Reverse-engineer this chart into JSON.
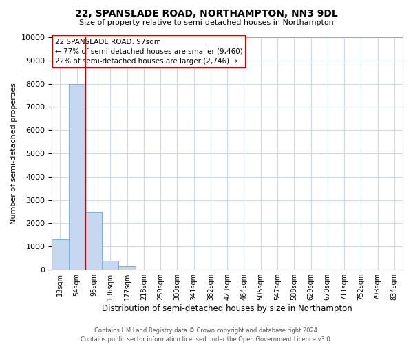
{
  "title": "22, SPANSLADE ROAD, NORTHAMPTON, NN3 9DL",
  "subtitle": "Size of property relative to semi-detached houses in Northampton",
  "xlabel": "Distribution of semi-detached houses by size in Northampton",
  "ylabel": "Number of semi-detached properties",
  "bin_labels": [
    "13sqm",
    "54sqm",
    "95sqm",
    "136sqm",
    "177sqm",
    "218sqm",
    "259sqm",
    "300sqm",
    "341sqm",
    "382sqm",
    "423sqm",
    "464sqm",
    "505sqm",
    "547sqm",
    "588sqm",
    "629sqm",
    "670sqm",
    "711sqm",
    "752sqm",
    "793sqm",
    "834sqm"
  ],
  "bar_heights": [
    1300,
    8000,
    2500,
    400,
    150,
    0,
    0,
    0,
    0,
    0,
    0,
    0,
    0,
    0,
    0,
    0,
    0,
    0,
    0,
    0,
    0
  ],
  "bar_color": "#c5d8f0",
  "bar_edge_color": "#7bafd4",
  "property_line_color": "#cc0000",
  "annotation_title": "22 SPANSLADE ROAD: 97sqm",
  "annotation_line1": "← 77% of semi-detached houses are smaller (9,460)",
  "annotation_line2": "22% of semi-detached houses are larger (2,746) →",
  "annotation_box_color": "#ffffff",
  "annotation_box_edge_color": "#cc0000",
  "ylim": [
    0,
    10000
  ],
  "yticks": [
    0,
    1000,
    2000,
    3000,
    4000,
    5000,
    6000,
    7000,
    8000,
    9000,
    10000
  ],
  "footer_line1": "Contains HM Land Registry data © Crown copyright and database right 2024.",
  "footer_line2": "Contains public sector information licensed under the Open Government Licence v3.0.",
  "background_color": "#ffffff",
  "grid_color": "#ccd9e8",
  "property_line_bin_index": 2
}
